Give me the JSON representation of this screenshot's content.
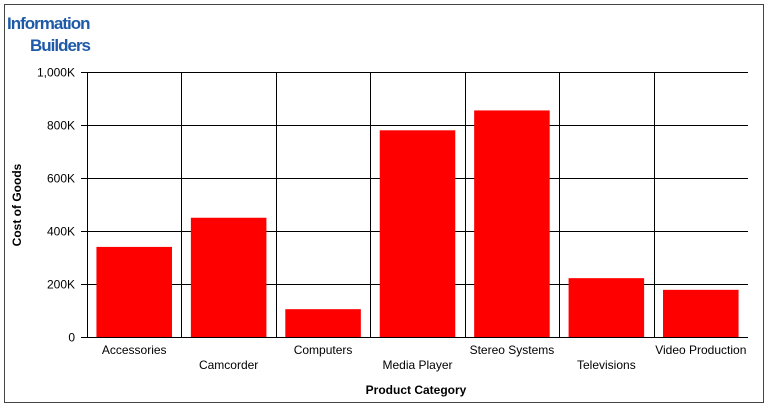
{
  "logo": [
    "Information",
    "Builders"
  ],
  "chart_data": {
    "type": "bar",
    "x_label": "Product Category",
    "y_label": "Cost of Goods",
    "categories": [
      "Accessories",
      "Camcorder",
      "Computers",
      "Media Player",
      "Stereo Systems",
      "Televisions",
      "Video Production"
    ],
    "values": [
      340000,
      450000,
      105000,
      780000,
      855000,
      222000,
      178000
    ],
    "color": "#ff0000",
    "ylim": [
      0,
      1000000
    ],
    "yticks": [
      0,
      {
        "value": 200000,
        "label": "200K"
      },
      {
        "value": 400000,
        "label": "400K"
      },
      {
        "value": 600000,
        "label": "600K"
      },
      {
        "value": 800000,
        "label": "800K"
      },
      {
        "value": 1000000,
        "label": "1,000K"
      }
    ],
    "grid": true
  }
}
